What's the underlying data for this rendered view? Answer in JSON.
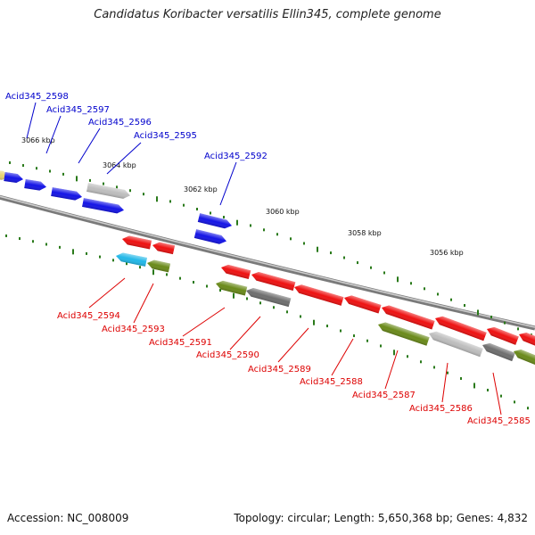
{
  "title": "Candidatus Koribacter versatilis Ellin345, complete genome",
  "footer": {
    "accession": "Accession: NC_008009",
    "summary": "Topology: circular; Length: 5,650,368 bp; Genes: 4,832"
  },
  "colors": {
    "forward_label": "#0000cc",
    "reverse_label": "#dd0000",
    "backbone": "#8a8a8a",
    "ticks": "#2a7a1a"
  },
  "kbp_labels": [
    "3066 kbp",
    "3064 kbp",
    "3062 kbp",
    "3060 kbp",
    "3058 kbp",
    "3056 kbp"
  ],
  "forward_genes": [
    {
      "label": "Acid345_2598",
      "color": "#1414e6"
    },
    {
      "label": "Acid345_2597",
      "color": "#1414e6"
    },
    {
      "label": "Acid345_2596",
      "color": "#1414e6"
    },
    {
      "label": "Acid345_2595",
      "color": "#bdbdbd"
    },
    {
      "label": "Acid345_2592",
      "color": "#1414e6"
    }
  ],
  "reverse_genes": [
    {
      "label": "Acid345_2594",
      "color": "#22b8e8"
    },
    {
      "label": "Acid345_2593",
      "color": "#6a8a1a"
    },
    {
      "label": "Acid345_2591",
      "color": "#6a8a1a"
    },
    {
      "label": "Acid345_2590",
      "color": "#6e6e6e"
    },
    {
      "label": "Acid345_2589",
      "color": "#ee1111"
    },
    {
      "label": "Acid345_2588",
      "color": "#ee1111"
    },
    {
      "label": "Acid345_2587",
      "color": "#6a8a1a"
    },
    {
      "label": "Acid345_2586",
      "color": "#bdbdbd"
    },
    {
      "label": "Acid345_2585",
      "color": "#6e6e6e"
    }
  ]
}
